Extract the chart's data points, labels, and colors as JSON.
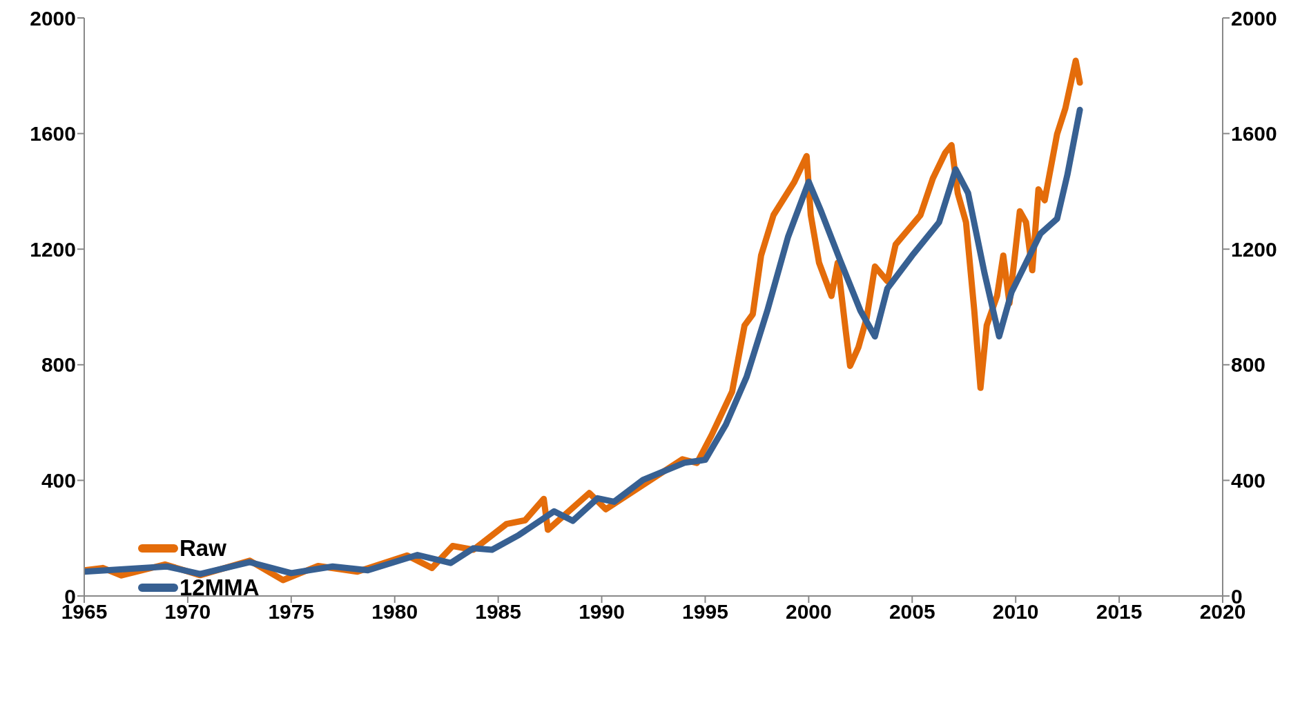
{
  "chart_data": {
    "type": "line",
    "xlim": [
      1965,
      2020
    ],
    "xticks": [
      1965,
      1970,
      1975,
      1980,
      1985,
      1990,
      1995,
      2000,
      2005,
      2010,
      2015,
      2020
    ],
    "ylim": [
      0,
      2000
    ],
    "yticks": [
      0,
      400,
      800,
      1200,
      1600,
      2000
    ],
    "y2lim": [
      0,
      2000
    ],
    "y2ticks": [
      0,
      400,
      800,
      1200,
      1600,
      2000
    ],
    "grid": false,
    "legend": "bottom left",
    "marker": "none",
    "line_style": "solid",
    "series": [
      {
        "name": "Raw",
        "color": "#e46c0a",
        "x": [
          1965,
          1965.9,
          1966.8,
          1968.9,
          1970.6,
          1973,
          1974.6,
          1976.3,
          1978.2,
          1980.6,
          1981.8,
          1982.8,
          1983.8,
          1985.4,
          1986.3,
          1987.2,
          1987.4,
          1989.4,
          1990.2,
          1993.9,
          1994.6,
          1995.3,
          1996.3,
          1996.9,
          1997.3,
          1997.7,
          1998.3,
          1999.3,
          1999.9,
          2000.1,
          2000.5,
          2001.1,
          2001.4,
          2001.8,
          2002,
          2002.4,
          2002.8,
          2003.2,
          2003.8,
          2004.2,
          2004.8,
          2005.4,
          2006,
          2006.6,
          2006.9,
          2007.2,
          2007.6,
          2008,
          2008.3,
          2008.6,
          2009.1,
          2009.4,
          2009.7,
          2010.2,
          2010.5,
          2010.8,
          2011.1,
          2011.4,
          2012,
          2012.4,
          2012.9,
          2013.1
        ],
        "values": [
          89,
          97,
          71,
          109,
          72,
          122,
          55,
          104,
          84,
          140,
          97,
          173,
          160,
          249,
          262,
          336,
          229,
          356,
          300,
          473,
          460,
          555,
          707,
          936,
          975,
          1178,
          1318,
          1432,
          1522,
          1318,
          1153,
          1038,
          1153,
          911,
          796,
          860,
          962,
          1140,
          1089,
          1216,
          1267,
          1318,
          1445,
          1534,
          1560,
          1394,
          1293,
          987,
          720,
          936,
          1038,
          1178,
          1013,
          1331,
          1293,
          1127,
          1407,
          1369,
          1598,
          1687,
          1852,
          1776
        ]
      },
      {
        "name": "12MMA",
        "color": "#376092",
        "x": [
          1965,
          1969,
          1970.6,
          1973,
          1975,
          1977,
          1978.7,
          1981.1,
          1982.7,
          1983.8,
          1984.7,
          1986,
          1987.7,
          1988.6,
          1989.8,
          1990.6,
          1992,
          1994,
          1995,
          1996,
          1997,
          1998,
          1999,
          2000,
          2000.6,
          2001.5,
          2002.5,
          2003.2,
          2003.8,
          2005,
          2006.3,
          2007.1,
          2007.7,
          2008.5,
          2009.2,
          2009.8,
          2010.5,
          2011.2,
          2012,
          2012.5,
          2013.1
        ],
        "values": [
          84,
          102,
          76,
          117,
          79,
          102,
          89,
          142,
          114,
          165,
          160,
          211,
          293,
          260,
          338,
          326,
          402,
          461,
          471,
          593,
          758,
          987,
          1242,
          1433,
          1331,
          1165,
          987,
          898,
          1064,
          1178,
          1293,
          1476,
          1394,
          1115,
          898,
          1051,
          1153,
          1254,
          1305,
          1458,
          1682
        ]
      }
    ]
  }
}
